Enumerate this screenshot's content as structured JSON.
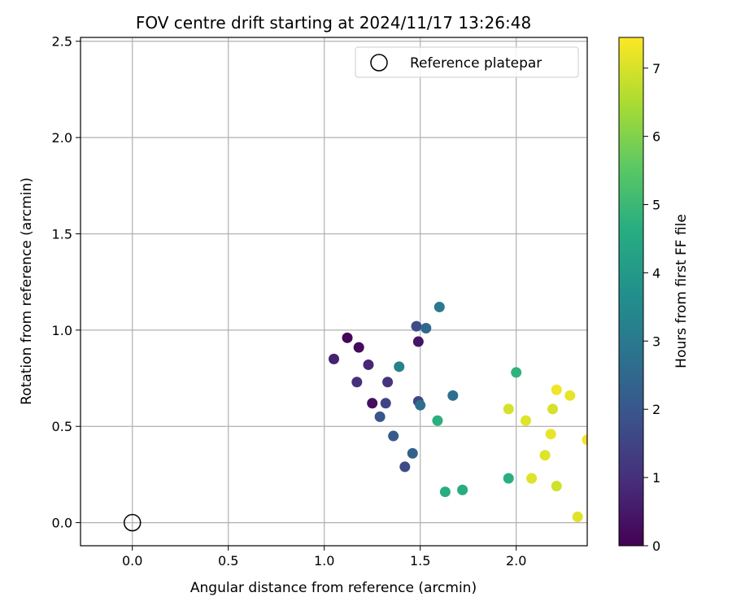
{
  "chart_data": {
    "type": "scatter",
    "title": "FOV centre drift starting at 2024/11/17 13:26:48",
    "xlabel": "Angular distance from reference (arcmin)",
    "ylabel": "Rotation from reference (arcmin)",
    "xlim": [
      -0.27,
      2.37
    ],
    "ylim": [
      -0.12,
      2.52
    ],
    "xticks": [
      "0.0",
      "0.5",
      "1.0",
      "1.5",
      "2.0"
    ],
    "yticks": [
      "0.0",
      "0.5",
      "1.0",
      "1.5",
      "2.0",
      "2.5"
    ],
    "grid": true,
    "legend": {
      "position": "top-right",
      "entries": [
        "Reference platepar"
      ]
    },
    "reference_point": {
      "x": 0.0,
      "y": 0.0
    },
    "colorbar": {
      "label": "Hours from first FF file",
      "colormap": "viridis",
      "range": [
        0,
        7.45
      ],
      "ticks": [
        "0",
        "1",
        "2",
        "3",
        "4",
        "5",
        "6",
        "7"
      ]
    },
    "points": [
      {
        "x": 1.12,
        "y": 0.96,
        "c": 0.1
      },
      {
        "x": 1.18,
        "y": 0.91,
        "c": 0.2
      },
      {
        "x": 1.25,
        "y": 0.62,
        "c": 0.3
      },
      {
        "x": 1.49,
        "y": 0.94,
        "c": 0.4
      },
      {
        "x": 1.05,
        "y": 0.85,
        "c": 0.7
      },
      {
        "x": 1.23,
        "y": 0.82,
        "c": 0.8
      },
      {
        "x": 1.17,
        "y": 0.73,
        "c": 1.0
      },
      {
        "x": 1.33,
        "y": 0.73,
        "c": 1.1
      },
      {
        "x": 1.32,
        "y": 0.62,
        "c": 1.5
      },
      {
        "x": 1.49,
        "y": 0.63,
        "c": 1.6
      },
      {
        "x": 1.48,
        "y": 1.02,
        "c": 1.7
      },
      {
        "x": 1.42,
        "y": 0.29,
        "c": 1.7
      },
      {
        "x": 1.29,
        "y": 0.55,
        "c": 2.0
      },
      {
        "x": 1.36,
        "y": 0.45,
        "c": 2.1
      },
      {
        "x": 1.46,
        "y": 0.36,
        "c": 2.3
      },
      {
        "x": 1.53,
        "y": 1.01,
        "c": 2.5
      },
      {
        "x": 1.5,
        "y": 0.61,
        "c": 2.7
      },
      {
        "x": 1.67,
        "y": 0.66,
        "c": 2.7
      },
      {
        "x": 1.6,
        "y": 1.12,
        "c": 3.0
      },
      {
        "x": 1.39,
        "y": 0.81,
        "c": 3.2
      },
      {
        "x": 1.59,
        "y": 0.53,
        "c": 4.7
      },
      {
        "x": 1.63,
        "y": 0.16,
        "c": 4.6
      },
      {
        "x": 1.72,
        "y": 0.17,
        "c": 4.6
      },
      {
        "x": 1.96,
        "y": 0.23,
        "c": 4.7
      },
      {
        "x": 2.0,
        "y": 0.78,
        "c": 4.8
      },
      {
        "x": 1.96,
        "y": 0.59,
        "c": 7.0
      },
      {
        "x": 2.05,
        "y": 0.53,
        "c": 7.1
      },
      {
        "x": 2.08,
        "y": 0.23,
        "c": 7.1
      },
      {
        "x": 2.15,
        "y": 0.35,
        "c": 7.1
      },
      {
        "x": 2.18,
        "y": 0.46,
        "c": 7.2
      },
      {
        "x": 2.19,
        "y": 0.59,
        "c": 7.0
      },
      {
        "x": 2.21,
        "y": 0.69,
        "c": 7.3
      },
      {
        "x": 2.21,
        "y": 0.19,
        "c": 6.9
      },
      {
        "x": 2.28,
        "y": 0.66,
        "c": 7.2
      },
      {
        "x": 2.32,
        "y": 0.03,
        "c": 7.1
      },
      {
        "x": 2.37,
        "y": 0.43,
        "c": 7.3
      }
    ]
  }
}
